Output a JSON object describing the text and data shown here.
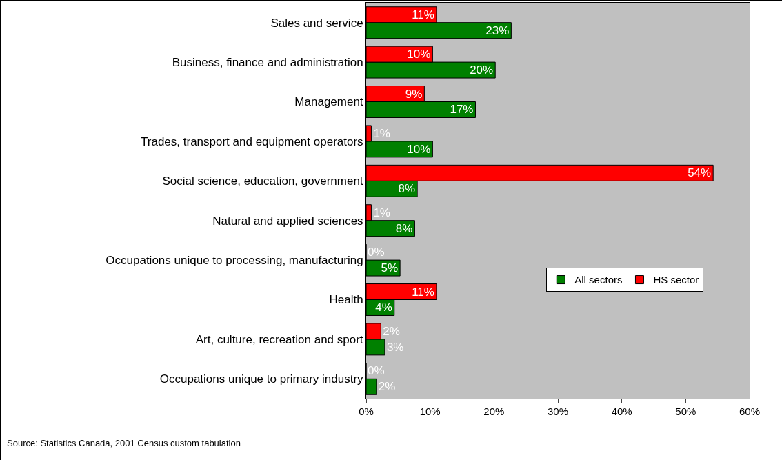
{
  "chart_data": {
    "type": "bar",
    "orientation": "horizontal",
    "categories": [
      "Sales and service",
      "Business, finance and administration",
      "Management",
      "Trades, transport and equipment operators",
      "Social science, education, government",
      "Natural and applied sciences",
      "Occupations unique to processing, manufacturing",
      "Health",
      "Art, culture, recreation and sport",
      "Occupations unique to primary industry"
    ],
    "series": [
      {
        "name": "All sectors",
        "color": "#008000",
        "values": [
          22.7,
          20.2,
          17.1,
          10.4,
          8,
          7.6,
          5.3,
          4.4,
          2.9,
          1.6
        ],
        "value_labels": [
          "23%",
          "20%",
          "17%",
          "10%",
          "8%",
          "8%",
          "5%",
          "4%",
          "3%",
          "2%"
        ]
      },
      {
        "name": "HS sector",
        "color": "#ff0000",
        "values": [
          11,
          10.4,
          9.1,
          0.8,
          54.3,
          0.8,
          0,
          11,
          2.3,
          0
        ],
        "value_labels": [
          "11%",
          "10%",
          "9%",
          "1%",
          "54%",
          "1%",
          "0%",
          "11%",
          "2%",
          "0%"
        ]
      }
    ],
    "xlim": [
      0,
      60
    ],
    "xticks": [
      {
        "value": 0,
        "label": "0%"
      },
      {
        "value": 10,
        "label": "10%"
      },
      {
        "value": 20,
        "label": "20%"
      },
      {
        "value": 30,
        "label": "30%"
      },
      {
        "value": 40,
        "label": "40%"
      },
      {
        "value": 50,
        "label": "50%"
      },
      {
        "value": 60,
        "label": "60%"
      }
    ],
    "grid": false,
    "legend": "right",
    "annotations": [
      "Source: Statistics Canada, 2001 Census custom tabulation"
    ]
  }
}
